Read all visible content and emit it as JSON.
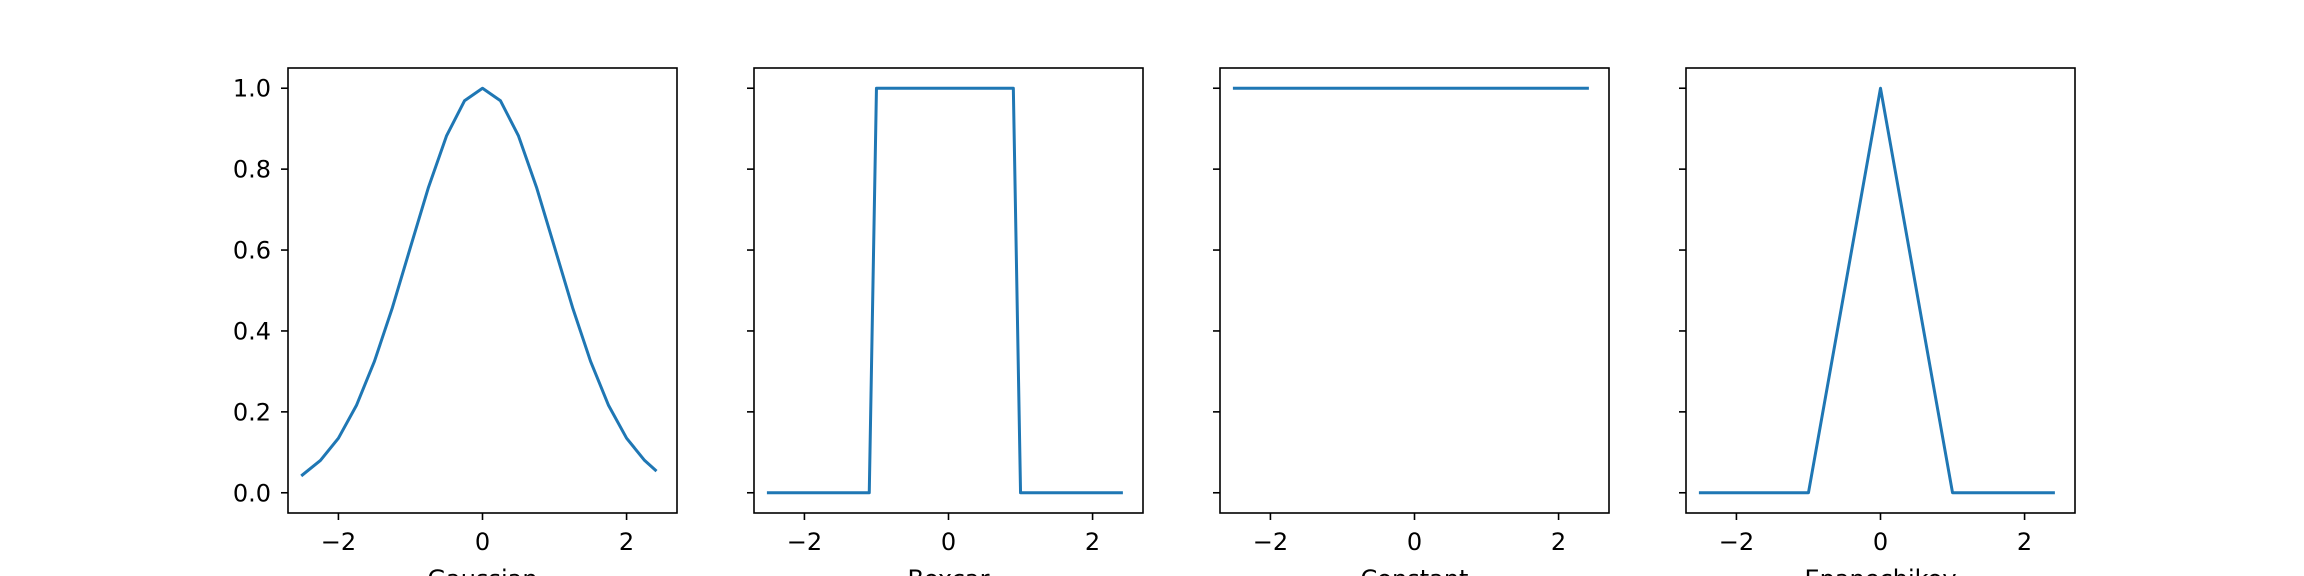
{
  "chart_data": [
    {
      "type": "line",
      "xlabel": "Gaussian",
      "ylabel": "",
      "xlim": [
        -2.7,
        2.7
      ],
      "ylim": [
        -0.05,
        1.05
      ],
      "xticks": [
        -2,
        0,
        2
      ],
      "xtick_labels": [
        "−2",
        "0",
        "2"
      ],
      "yticks": [
        0.0,
        0.2,
        0.4,
        0.6,
        0.8,
        1.0
      ],
      "ytick_labels": [
        "0.0",
        "0.2",
        "0.4",
        "0.6",
        "0.8",
        "1.0"
      ],
      "show_ytick_labels": true,
      "grid": false,
      "line_color": "#1f77b4",
      "series": [
        {
          "x": [
            -2.5,
            -2.25,
            -2.0,
            -1.75,
            -1.5,
            -1.25,
            -1.0,
            -0.75,
            -0.5,
            -0.25,
            0.0,
            0.25,
            0.5,
            0.75,
            1.0,
            1.25,
            1.5,
            1.75,
            2.0,
            2.25,
            2.4
          ],
          "y": [
            0.044,
            0.08,
            0.135,
            0.216,
            0.325,
            0.458,
            0.607,
            0.755,
            0.882,
            0.969,
            1.0,
            0.969,
            0.882,
            0.755,
            0.607,
            0.458,
            0.325,
            0.216,
            0.135,
            0.08,
            0.056
          ]
        }
      ]
    },
    {
      "type": "line",
      "xlabel": "Boxcar",
      "ylabel": "",
      "xlim": [
        -2.7,
        2.7
      ],
      "ylim": [
        -0.05,
        1.05
      ],
      "xticks": [
        -2,
        0,
        2
      ],
      "xtick_labels": [
        "−2",
        "0",
        "2"
      ],
      "yticks": [
        0.0,
        0.2,
        0.4,
        0.6,
        0.8,
        1.0
      ],
      "show_ytick_labels": false,
      "grid": false,
      "line_color": "#1f77b4",
      "series": [
        {
          "x": [
            -2.5,
            -1.1,
            -1.0,
            0.9,
            1.0,
            2.4
          ],
          "y": [
            0.0,
            0.0,
            1.0,
            1.0,
            0.0,
            0.0
          ]
        }
      ]
    },
    {
      "type": "line",
      "xlabel": "Constant",
      "ylabel": "",
      "xlim": [
        -2.7,
        2.7
      ],
      "ylim": [
        -0.05,
        1.05
      ],
      "xticks": [
        -2,
        0,
        2
      ],
      "xtick_labels": [
        "−2",
        "0",
        "2"
      ],
      "yticks": [
        0.0,
        0.2,
        0.4,
        0.6,
        0.8,
        1.0
      ],
      "show_ytick_labels": false,
      "grid": false,
      "line_color": "#1f77b4",
      "series": [
        {
          "x": [
            -2.5,
            2.4
          ],
          "y": [
            1.0,
            1.0
          ]
        }
      ]
    },
    {
      "type": "line",
      "xlabel": "Epanechikov",
      "ylabel": "",
      "xlim": [
        -2.7,
        2.7
      ],
      "ylim": [
        -0.05,
        1.05
      ],
      "xticks": [
        -2,
        0,
        2
      ],
      "xtick_labels": [
        "−2",
        "0",
        "2"
      ],
      "yticks": [
        0.0,
        0.2,
        0.4,
        0.6,
        0.8,
        1.0
      ],
      "show_ytick_labels": false,
      "grid": false,
      "line_color": "#1f77b4",
      "series": [
        {
          "x": [
            -2.5,
            -1.0,
            0.0,
            1.0,
            2.4
          ],
          "y": [
            0.0,
            0.0,
            1.0,
            0.0,
            0.0
          ]
        }
      ]
    }
  ]
}
